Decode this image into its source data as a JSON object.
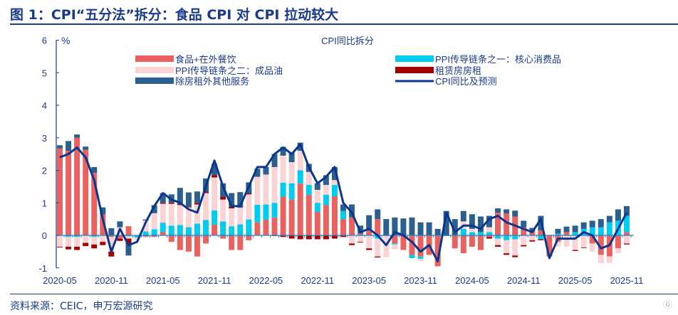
{
  "header": {
    "title": "图 1：CPI“五分法”拆分：食品 CPI 对 CPI 拉动较大"
  },
  "source": "资料来源：CEIC，申万宏源研究",
  "watermark": "格隆汇",
  "chart_data": {
    "type": "bar",
    "stacked": true,
    "title": "CPI同比拆分",
    "ylabel": "%",
    "ylim": [
      -1,
      6
    ],
    "yticks": [
      -1,
      0,
      1,
      2,
      3,
      4,
      5,
      6
    ],
    "x_start": "2020-05",
    "x_end": "2025-11",
    "xtick_labels": [
      "2020-05",
      "2020-11",
      "2021-05",
      "2021-11",
      "2022-05",
      "2022-11",
      "2023-05",
      "2023-11",
      "2024-05",
      "2024-11",
      "2025-05",
      "2025-11"
    ],
    "legend_placement": "top",
    "series": [
      {
        "name": "食品+在外餐饮",
        "color": "#E8625F",
        "values": [
          2.67,
          2.6,
          3.0,
          2.63,
          1.92,
          0.64,
          -0.05,
          -0.1,
          0.28,
          -0.02,
          -0.05,
          -0.05,
          0.1,
          -0.2,
          -0.45,
          -0.5,
          -0.65,
          -0.25,
          0.33,
          -0.1,
          -0.45,
          -0.45,
          -0.15,
          0.4,
          0.48,
          0.55,
          1.19,
          1.1,
          1.6,
          1.25,
          0.72,
          0.93,
          1.2,
          0.5,
          0.55,
          0.05,
          0.2,
          0.5,
          -0.02,
          -0.25,
          -0.45,
          -0.6,
          -0.65,
          -0.6,
          -0.95,
          0,
          -0.4,
          -0.55,
          -0.35,
          -0.45,
          -0.05,
          0.7,
          0.67,
          0.58,
          0.25,
          0.12,
          0.15,
          -0.65,
          -0.2,
          0.1,
          0,
          0,
          -0.25,
          -0.6,
          -0.65,
          -0.4,
          0.1
        ]
      },
      {
        "name": "PPI传导链条之一：核心消费品",
        "color": "#00CCF0",
        "values": [
          0,
          -0.05,
          -0.05,
          0,
          -0.05,
          0,
          0,
          0,
          -0.03,
          -0.05,
          0.12,
          0.19,
          0.29,
          0.3,
          0.32,
          0.25,
          0.36,
          0.47,
          0.44,
          0.43,
          0.28,
          0.34,
          0.49,
          0.54,
          0.47,
          0.45,
          0.43,
          0.5,
          0.4,
          0.3,
          0.28,
          0.32,
          0.35,
          0.25,
          0,
          0,
          0,
          -0.1,
          0,
          -0.03,
          0,
          -0.1,
          -0.07,
          0,
          0,
          -0.02,
          0,
          0.2,
          0.1,
          0.1,
          0.1,
          -0.1,
          -0.15,
          -0.12,
          0,
          0,
          -0.12,
          0,
          0.05,
          0,
          0.1,
          0.2,
          0.25,
          0.25,
          0.4,
          0.45,
          0.5
        ]
      },
      {
        "name": "PPI传导链条之二：成品油",
        "color": "#FAD4D4",
        "values": [
          -0.35,
          -0.3,
          -0.3,
          -0.23,
          -0.23,
          -0.2,
          -0.45,
          0.25,
          -0.07,
          -0.1,
          0.34,
          0.49,
          0.58,
          0.67,
          0.61,
          0.61,
          0.59,
          0.83,
          1.01,
          0.67,
          0.55,
          0.51,
          0.77,
          0.86,
          0.92,
          1.1,
          0.83,
          0.65,
          0.6,
          0.4,
          0.4,
          0.3,
          0.15,
          0,
          -0.25,
          -0.2,
          -0.4,
          -0.55,
          -0.65,
          -0.15,
          0,
          0,
          -0.07,
          0,
          0,
          0,
          0,
          0.23,
          0.1,
          0,
          0.15,
          -0.2,
          -0.4,
          -0.5,
          -0.3,
          -0.15,
          0,
          0,
          -0.15,
          -0.35,
          -0.45,
          -0.37,
          -0.25,
          -0.25,
          -0.2,
          -0.15,
          -0.25
        ]
      },
      {
        "name": "租赁房房租",
        "color": "#A50000",
        "values": [
          -0.02,
          -0.08,
          -0.1,
          -0.1,
          -0.12,
          -0.1,
          -0.15,
          -0.07,
          -0.17,
          0,
          0,
          0,
          0.03,
          0.04,
          0.03,
          0.03,
          0.05,
          0.05,
          0.07,
          0.08,
          0.05,
          0,
          0.03,
          0,
          0,
          -0.02,
          -0.05,
          -0.1,
          -0.12,
          -0.12,
          -0.12,
          -0.12,
          -0.1,
          -0.05,
          -0.05,
          -0.02,
          -0.05,
          -0.03,
          0,
          0,
          0,
          0,
          0,
          0,
          0,
          0,
          0,
          0,
          0,
          0,
          -0.05,
          -0.05,
          -0.05,
          -0.05,
          -0.04,
          -0.04,
          -0.03,
          0,
          0,
          0,
          -0.03,
          -0.02,
          0,
          0,
          0,
          0,
          -0.03
        ]
      },
      {
        "name": "除房租外其他服务",
        "color": "#2B5F8E",
        "values": [
          0.1,
          0.3,
          0.1,
          0.1,
          0.18,
          0.22,
          0.22,
          0.18,
          -0.35,
          0,
          0.03,
          0.25,
          0.3,
          0.25,
          0.5,
          0.43,
          0.35,
          0.4,
          0.35,
          0.42,
          0.42,
          0.48,
          0.34,
          0.25,
          0.23,
          0.4,
          0.27,
          0.28,
          0.25,
          0.25,
          0.2,
          0.3,
          0.4,
          0.2,
          0.4,
          0.25,
          0.42,
          0.3,
          0.5,
          0.55,
          0.52,
          0.55,
          0.4,
          0.4,
          0.2,
          0.75,
          0.5,
          0.32,
          0.45,
          0.48,
          0.35,
          0.13,
          0.13,
          0.18,
          0.2,
          0.11,
          0.45,
          0,
          0.15,
          0.17,
          0.2,
          0.2,
          0.2,
          0.25,
          0.2,
          0.35,
          0.3
        ]
      }
    ],
    "line": {
      "name": "CPI同比及预测",
      "color": "#0A3690",
      "values": [
        2.4,
        2.5,
        2.7,
        2.4,
        1.7,
        0.5,
        -0.5,
        0.2,
        -0.3,
        -0.2,
        0.4,
        0.9,
        1.3,
        1.1,
        1.0,
        0.8,
        0.7,
        1.5,
        2.3,
        1.5,
        0.9,
        0.9,
        1.5,
        2.1,
        2.1,
        2.5,
        2.7,
        2.5,
        2.8,
        2.1,
        1.6,
        1.8,
        2.1,
        1.0,
        0.7,
        0.1,
        0.2,
        0.0,
        -0.3,
        0.1,
        0.0,
        -0.2,
        -0.5,
        -0.3,
        -0.8,
        0.7,
        0.1,
        0.3,
        0.3,
        0.2,
        0.5,
        0.6,
        0.4,
        0.3,
        0.2,
        0.1,
        0.5,
        -0.7,
        -0.1,
        -0.1,
        -0.1,
        0.1,
        0.0,
        -0.4,
        -0.3,
        0.2,
        0.7
      ]
    }
  }
}
